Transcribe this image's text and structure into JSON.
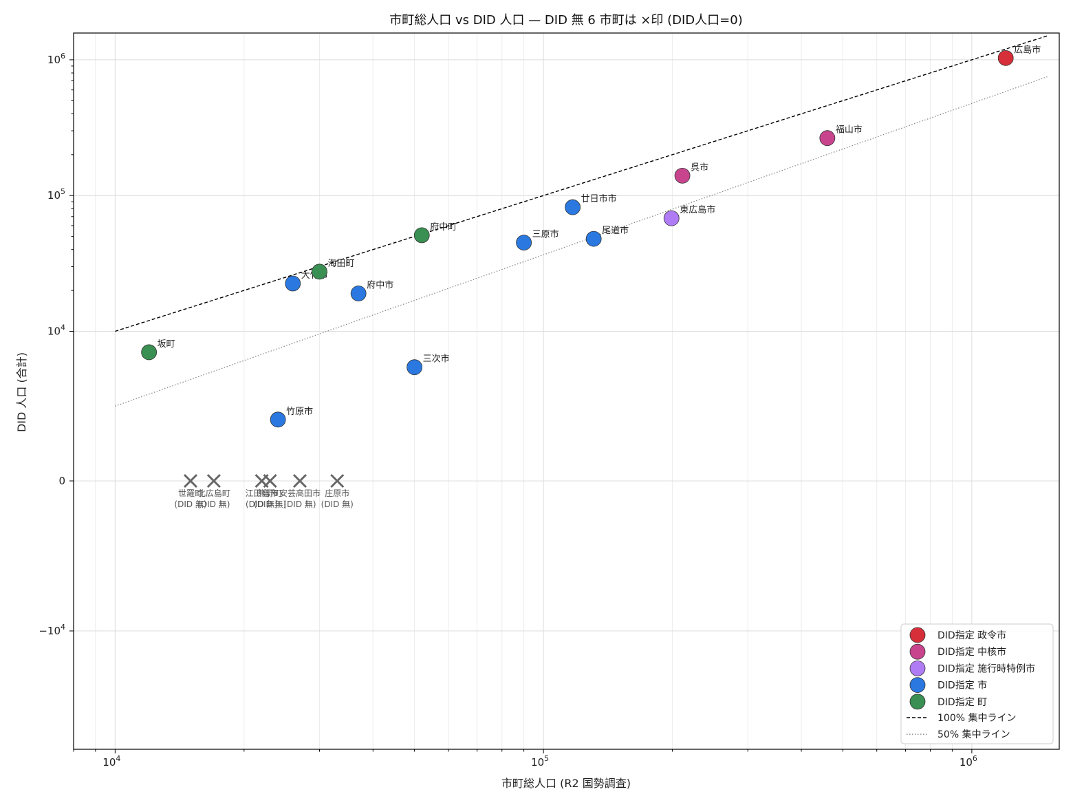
{
  "chart_data": {
    "type": "scatter",
    "title": "市町総人口 vs DID 人口 — DID 無 6 市町は ×印 (DID人口=0)",
    "xlabel": "市町総人口 (R2 国勢調査)",
    "ylabel": "DID 人口 (合計)",
    "x_scale": "log",
    "y_scale": "symlog",
    "xlim": [
      8000,
      1600000
    ],
    "x_ticks": [
      {
        "value": 10000,
        "base": "10",
        "exp": "4"
      },
      {
        "value": 100000,
        "base": "10",
        "exp": "5"
      },
      {
        "value": 1000000,
        "base": "10",
        "exp": "6"
      }
    ],
    "y_ticks": [
      {
        "value": 1000000,
        "sign": "",
        "base": "10",
        "exp": "6"
      },
      {
        "value": 100000,
        "sign": "",
        "base": "10",
        "exp": "5"
      },
      {
        "value": 10000,
        "sign": "",
        "base": "10",
        "exp": "4"
      },
      {
        "value": 0,
        "sign": "",
        "base": "0",
        "exp": ""
      },
      {
        "value": -10000,
        "sign": "−",
        "base": "10",
        "exp": "4"
      }
    ],
    "grid": true,
    "legend_position": "bottom-right",
    "series": [
      {
        "name": "DID指定 政令市",
        "color": "#d62f3a",
        "points": [
          {
            "label": "広島市",
            "x": 1200000,
            "y": 1030000
          }
        ]
      },
      {
        "name": "DID指定 中核市",
        "color": "#c8458e",
        "points": [
          {
            "label": "福山市",
            "x": 460000,
            "y": 265000
          },
          {
            "label": "呉市",
            "x": 211000,
            "y": 140000
          }
        ]
      },
      {
        "name": "DID指定 施行時特例市",
        "color": "#b07cf5",
        "points": [
          {
            "label": "東広島市",
            "x": 199000,
            "y": 68000
          }
        ]
      },
      {
        "name": "DID指定 市",
        "color": "#2a78e0",
        "points": [
          {
            "label": "廿日市市",
            "x": 117000,
            "y": 82000
          },
          {
            "label": "尾道市",
            "x": 131000,
            "y": 48000
          },
          {
            "label": "三原市",
            "x": 90000,
            "y": 45000
          },
          {
            "label": "府中市",
            "x": 37000,
            "y": 19000
          },
          {
            "label": "大竹市",
            "x": 26000,
            "y": 22500
          },
          {
            "label": "三次市",
            "x": 50000,
            "y": 7600
          },
          {
            "label": "竹原市",
            "x": 24000,
            "y": 4100
          }
        ]
      },
      {
        "name": "DID指定 町",
        "color": "#3a8f52",
        "points": [
          {
            "label": "府中町",
            "x": 52000,
            "y": 51000
          },
          {
            "label": "海田町",
            "x": 30000,
            "y": 27500
          },
          {
            "label": "坂町",
            "x": 12000,
            "y": 8600
          }
        ]
      }
    ],
    "no_did": {
      "marker": "×",
      "color": "#666666",
      "points": [
        {
          "label": "世羅町",
          "note": "(DID 無)",
          "x": 15000,
          "y": 0
        },
        {
          "label": "北広島町",
          "note": "(DID 無)",
          "x": 17000,
          "y": 0
        },
        {
          "label": "江田島市",
          "note": "(DID 無)",
          "x": 22000,
          "y": 0
        },
        {
          "label": "熊野町",
          "note": "(DID 無)",
          "x": 23000,
          "y": 0
        },
        {
          "label": "安芸高田市",
          "note": "(DID 無)",
          "x": 27000,
          "y": 0
        },
        {
          "label": "庄原市",
          "note": "(DID 無)",
          "x": 33000,
          "y": 0
        }
      ]
    },
    "reference_lines": [
      {
        "name": "100% 集中ライン",
        "ratio": 1.0,
        "style": "dashed",
        "color": "#000000",
        "x_range": [
          10000,
          1500000
        ]
      },
      {
        "name": "50% 集中ライン",
        "ratio": 0.5,
        "style": "dotted",
        "color": "#888888",
        "x_range": [
          10000,
          1500000
        ]
      }
    ]
  }
}
